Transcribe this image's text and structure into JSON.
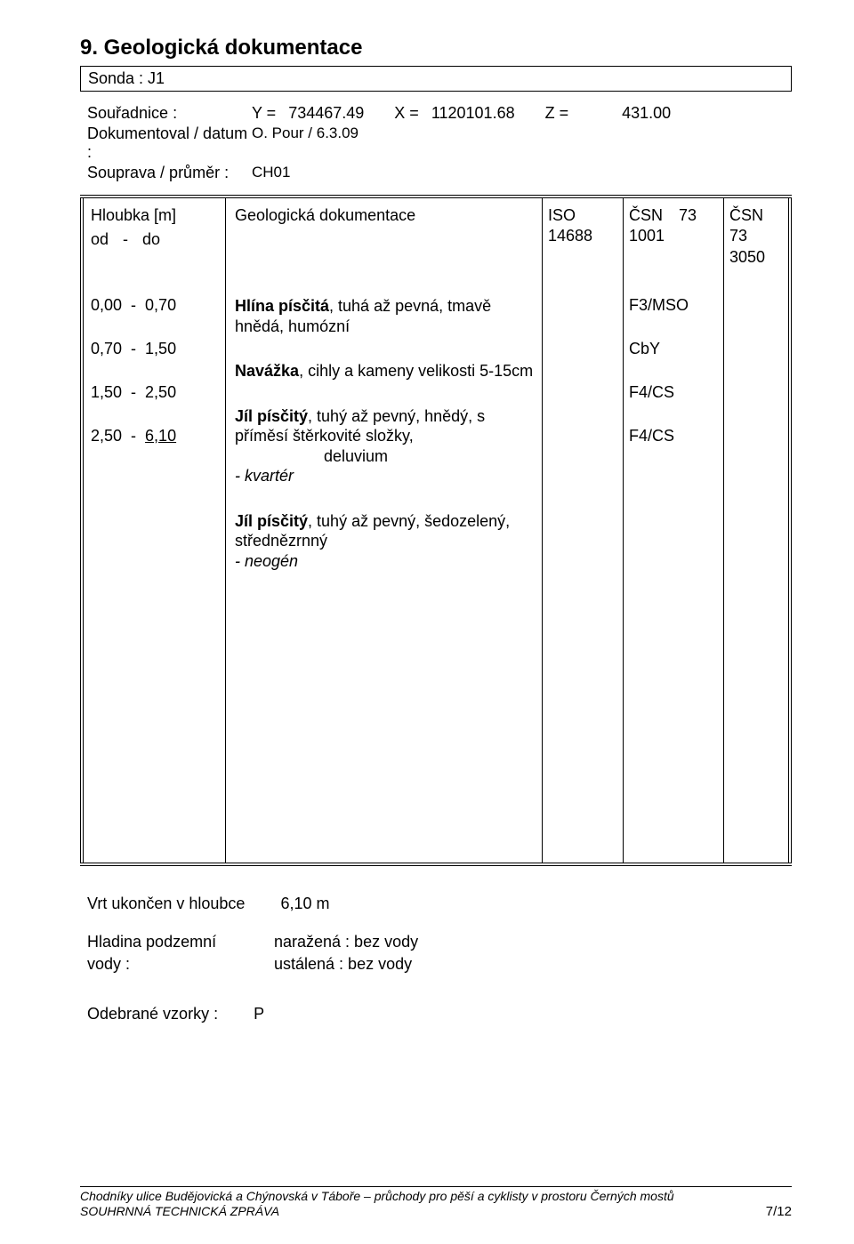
{
  "section": {
    "number_title": "9. Geologická dokumentace",
    "sonda": "Sonda : J1"
  },
  "top": {
    "coords_label": "Souřadnice :",
    "documented_label": "Dokumentoval / datum :",
    "set_label": "Souprava / průměr :",
    "Y_label": "Y =",
    "Y_val": "734467.49",
    "X_label": "X =",
    "X_val": "1120101.68",
    "Z_label": "Z =",
    "Z_val": "431.00",
    "documented_val": "O. Pour / 6.3.09",
    "set_val": "CH01"
  },
  "headers": {
    "depth_line1": "Hloubka [m]",
    "depth_line2_od": "od",
    "depth_line2_dash": "-",
    "depth_line2_do": "do",
    "desc": "Geologická dokumentace",
    "iso_l1": "ISO",
    "iso_l2": "14688",
    "csn1_l1": "ČSN",
    "csn1_l2": "1001",
    "csn1_l3": "73",
    "csn2_l1": "ČSN",
    "csn2_l2": "73",
    "csn2_l3": "3050"
  },
  "rows": [
    {
      "from": "0,00",
      "to": "0,70",
      "underline_to": false,
      "bold": "Hlína písčitá",
      "rest": ", tuhá až pevná, tmavě hnědá, humózní",
      "sub": "",
      "italic": "",
      "code": "F3/MSO"
    },
    {
      "from": "0,70",
      "to": "1,50",
      "underline_to": false,
      "bold": "Navážka",
      "rest": ", cihly a kameny velikosti 5-15cm",
      "sub": "",
      "italic": "",
      "code": "CbY"
    },
    {
      "from": "1,50",
      "to": "2,50",
      "underline_to": false,
      "bold": "Jíl písčitý",
      "rest": ", tuhý až pevný, hnědý, s příměsí štěrkovité složky,",
      "sub": "deluvium",
      "italic": "- kvartér",
      "code": "F4/CS"
    },
    {
      "from": "2,50",
      "to": "6,10",
      "underline_to": true,
      "bold": "Jíl písčitý",
      "rest": ", tuhý až pevný, šedozelený, střednězrnný",
      "sub": "",
      "italic": "- neogén",
      "code": "F4/CS"
    }
  ],
  "bottom": {
    "end_label": "Vrt ukončen v hloubce",
    "end_val": "6,10 m",
    "gw_label_l1": "Hladina podzemní",
    "gw_label_l2": "vody :",
    "gw_v1": "naražená : bez vody",
    "gw_v2": "ustálená : bez vody",
    "samples_label": "Odebrané vzorky :",
    "samples_val": "P"
  },
  "footer": {
    "l1": "Chodníky ulice Budějovická a Chýnovská v Táboře – průchody pro pěší a cyklisty v prostoru Černých mostů",
    "l2": "SOUHRNNÁ TECHNICKÁ ZPRÁVA",
    "page": "7/12"
  }
}
